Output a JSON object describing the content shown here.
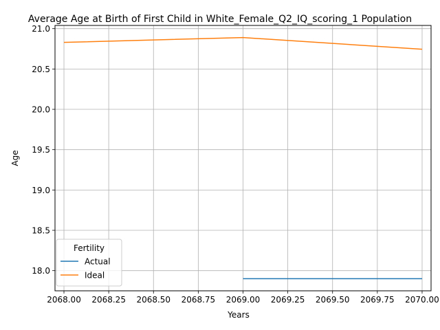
{
  "chart_data": {
    "type": "line",
    "title": "Average Age at Birth of First Child in White_Female_Q2_IQ_scoring_1 Population",
    "xlabel": "Years",
    "ylabel": "Age",
    "xlim": [
      2067.95,
      2070.05
    ],
    "ylim": [
      17.75,
      21.04
    ],
    "xticks": [
      2068.0,
      2068.25,
      2068.5,
      2068.75,
      2069.0,
      2069.25,
      2069.5,
      2069.75,
      2070.0
    ],
    "xtick_labels": [
      "2068.00",
      "2068.25",
      "2068.50",
      "2068.75",
      "2069.00",
      "2069.25",
      "2069.50",
      "2069.75",
      "2070.00"
    ],
    "yticks": [
      18.0,
      18.5,
      19.0,
      19.5,
      20.0,
      20.5,
      21.0
    ],
    "ytick_labels": [
      "18.0",
      "18.5",
      "19.0",
      "19.5",
      "20.0",
      "20.5",
      "21.0"
    ],
    "grid": true,
    "legend": {
      "title": "Fertility",
      "position": "lower-left"
    },
    "series": [
      {
        "name": "Actual",
        "color": "#1f77b4",
        "x": [
          2069,
          2070
        ],
        "values": [
          17.9,
          17.9
        ]
      },
      {
        "name": "Ideal",
        "color": "#ff7f0e",
        "x": [
          2068,
          2069,
          2070
        ],
        "values": [
          20.83,
          20.89,
          20.745
        ]
      }
    ]
  }
}
